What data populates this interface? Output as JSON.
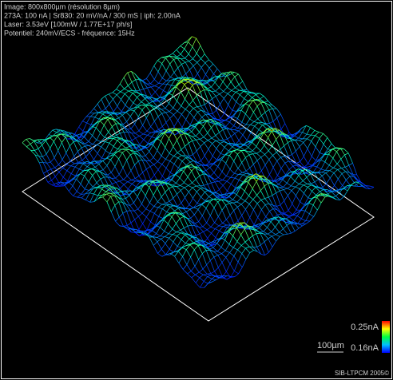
{
  "header": {
    "lines": [
      "Image: 800x800µm (résolution 8µm)",
      "273A: 100 nA  | Sr830: 20 mV/nA / 300 mS | iph: 2.00nA",
      "Laser: 3.53eV [100mW / 1.77E+17 ph/s]",
      "Potentiel: 240mV/ECS - fréquence: 15Hz"
    ]
  },
  "colorbar": {
    "max_label": "0.25nA",
    "min_label": "0.16nA"
  },
  "scale_bar": {
    "label": "100µm"
  },
  "credit": "SIB-LTPCM 2005©"
}
